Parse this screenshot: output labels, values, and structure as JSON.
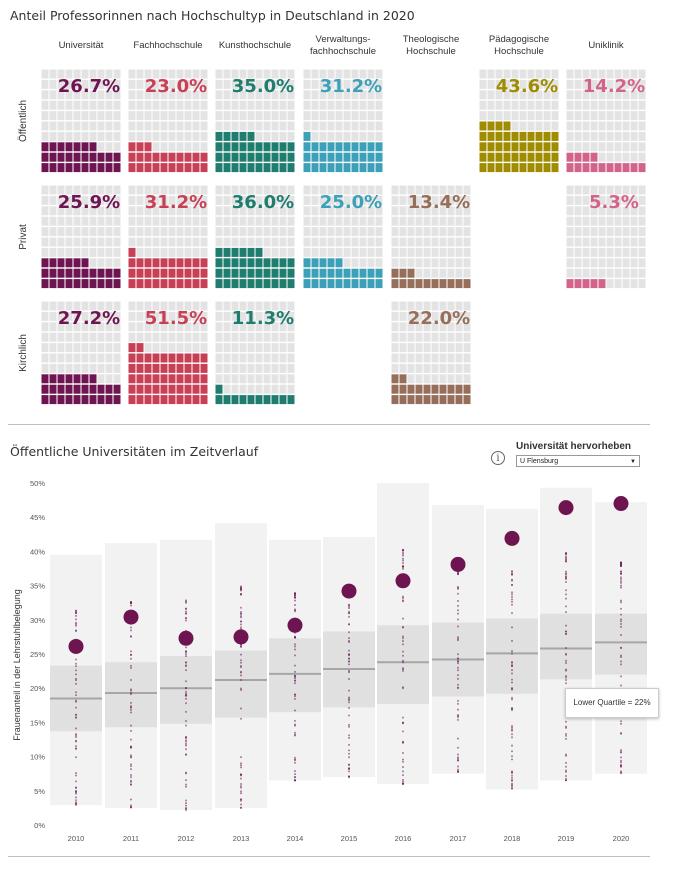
{
  "waffle": {
    "title": "Anteil Professorinnen nach Hochschultyp in Deutschland in 2020",
    "columns": [
      {
        "label": "Universität",
        "color": "#6e1450"
      },
      {
        "label": "Fachhochschule",
        "color": "#c84055"
      },
      {
        "label": "Kunsthochschule",
        "color": "#1e7d6e"
      },
      {
        "label": "Verwaltungs-\nfachhochschule",
        "color": "#3ca0b9"
      },
      {
        "label": "Theologische\nHochschule",
        "color": "#966e5a"
      },
      {
        "label": "Pädagogische\nHochschule",
        "color": "#a08c00"
      },
      {
        "label": "Uniklinik",
        "color": "#d2648c"
      }
    ],
    "rows": [
      "Öffentlich",
      "Privat",
      "Kirchlich"
    ],
    "grey": "#e3e3e3"
  },
  "chart_data": [
    {
      "type": "table",
      "title": "Anteil Professorinnen nach Hochschultyp in Deutschland in 2020",
      "row_labels": [
        "Öffentlich",
        "Privat",
        "Kirchlich"
      ],
      "column_labels": [
        "Universität",
        "Fachhochschule",
        "Kunsthochschule",
        "Verwaltungs-fachhochschule",
        "Theologische Hochschule",
        "Pädagogische Hochschule",
        "Uniklinik"
      ],
      "cells": [
        [
          "26.7%",
          "23.0%",
          "35.0%",
          "31.2%",
          null,
          "43.6%",
          "14.2%"
        ],
        [
          "25.9%",
          "31.2%",
          "36.0%",
          "25.0%",
          "13.4%",
          null,
          "5.3%"
        ],
        [
          "27.2%",
          "51.5%",
          "11.3%",
          null,
          "22.0%",
          null,
          null
        ]
      ],
      "values": [
        [
          26.7,
          23.0,
          35.0,
          31.2,
          null,
          43.6,
          14.2
        ],
        [
          25.9,
          31.2,
          36.0,
          25.0,
          13.4,
          null,
          5.3
        ],
        [
          27.2,
          51.5,
          11.3,
          null,
          22.0,
          null,
          null
        ]
      ]
    },
    {
      "type": "scatter",
      "title": "Öffentliche Universitäten im Zeitverlauf",
      "xlabel": "",
      "ylabel": "Frauenanteil in der Lehrstuhlbelegung",
      "x": [
        "2010",
        "2011",
        "2012",
        "2013",
        "2014",
        "2015",
        "2016",
        "2017",
        "2018",
        "2019",
        "2020"
      ],
      "ylim": [
        0,
        50
      ],
      "yticks": [
        "0%",
        "5%",
        "10%",
        "15%",
        "20%",
        "25%",
        "30%",
        "35%",
        "40%",
        "45%",
        "50%"
      ],
      "range_min": [
        2.9,
        2.5,
        2.2,
        2.5,
        6.5,
        7.0,
        6.0,
        7.5,
        5.2,
        6.5,
        7.5
      ],
      "range_max": [
        39.5,
        41.2,
        41.7,
        44.1,
        41.7,
        42.1,
        50.0,
        46.8,
        46.2,
        49.3,
        47.2
      ],
      "lower_quartile": [
        13.7,
        14.3,
        14.8,
        15.7,
        16.5,
        17.2,
        17.7,
        18.8,
        19.2,
        21.3,
        22.0
      ],
      "median": [
        18.5,
        19.3,
        20.0,
        21.2,
        22.1,
        22.8,
        23.8,
        24.2,
        25.1,
        25.8,
        26.7
      ],
      "upper_quartile": [
        23.3,
        23.8,
        24.7,
        25.5,
        27.3,
        28.3,
        29.2,
        29.6,
        30.2,
        30.9,
        30.9
      ],
      "highlight_series": {
        "name": "U Flensburg",
        "values": [
          26.1,
          30.4,
          27.3,
          27.5,
          29.2,
          34.2,
          35.7,
          38.1,
          41.9,
          46.4,
          47.0
        ]
      },
      "box_color": "#f2f2f2",
      "iqr_color": "#e0e0e0",
      "median_color": "#a6a6a6",
      "point_color": "#6e1450"
    }
  ],
  "timeseries": {
    "title": "Öffentliche Universitäten im Zeitverlauf",
    "dropdown_label": "Universität hervorheben",
    "dropdown_value": "U Flensburg",
    "info_icon": "i",
    "tooltip": "Lower Quartile = 22%"
  }
}
